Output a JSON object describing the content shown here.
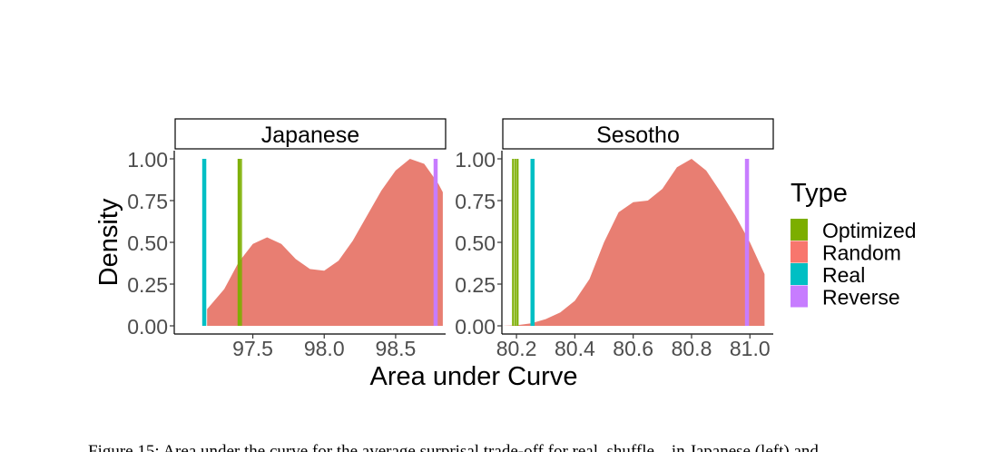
{
  "chart_data": {
    "type": "area",
    "xlabel": "Area under Curve",
    "ylabel": "Density",
    "legend": {
      "title": "Type",
      "placement": "right",
      "entries": [
        {
          "label": "Optimized",
          "color": "#7CAE00"
        },
        {
          "label": "Random",
          "color": "#F8766D"
        },
        {
          "label": "Real",
          "color": "#00BFC4"
        },
        {
          "label": "Reverse",
          "color": "#C77CFF"
        }
      ]
    },
    "panels": [
      {
        "title": "Japanese",
        "xlim": [
          96.95,
          98.85
        ],
        "ylim": [
          0,
          1
        ],
        "xticks": [
          97.5,
          98.0,
          98.5
        ],
        "xtick_labels": [
          "97.5",
          "98.0",
          "98.5"
        ],
        "yticks": [
          0,
          0.25,
          0.5,
          0.75,
          1
        ],
        "ytick_labels": [
          "0.00",
          "0.25",
          "0.50",
          "0.75",
          "1.00"
        ],
        "random_density": {
          "x": [
            97.18,
            97.3,
            97.4,
            97.5,
            97.6,
            97.7,
            97.8,
            97.9,
            98.0,
            98.1,
            98.2,
            98.3,
            98.4,
            98.5,
            98.6,
            98.7,
            98.8,
            98.83
          ],
          "y": [
            0.1,
            0.22,
            0.38,
            0.49,
            0.53,
            0.49,
            0.4,
            0.34,
            0.33,
            0.39,
            0.51,
            0.66,
            0.81,
            0.93,
            1.0,
            0.97,
            0.85,
            0.8
          ]
        },
        "vlines": [
          {
            "type": "Real",
            "x": [
              97.16
            ]
          },
          {
            "type": "Optimized",
            "x": [
              97.4,
              97.41,
              97.42
            ]
          },
          {
            "type": "Reverse",
            "x": [
              98.78
            ]
          }
        ]
      },
      {
        "title": "Sesotho",
        "xlim": [
          80.15,
          81.08
        ],
        "ylim": [
          0,
          1
        ],
        "xticks": [
          80.2,
          80.4,
          80.6,
          80.8,
          81.0
        ],
        "xtick_labels": [
          "80.2",
          "80.4",
          "80.6",
          "80.8",
          "81.0"
        ],
        "yticks": [
          0,
          0.25,
          0.5,
          0.75,
          1
        ],
        "ytick_labels": [
          "0.00",
          "0.25",
          "0.50",
          "0.75",
          "1.00"
        ],
        "random_density": {
          "x": [
            80.15,
            80.2,
            80.25,
            80.3,
            80.35,
            80.4,
            80.45,
            80.5,
            80.55,
            80.6,
            80.65,
            80.7,
            80.75,
            80.8,
            80.85,
            80.9,
            80.95,
            81.0,
            81.05
          ],
          "y": [
            0.0,
            0.003,
            0.015,
            0.04,
            0.08,
            0.15,
            0.28,
            0.5,
            0.68,
            0.74,
            0.75,
            0.82,
            0.95,
            1.0,
            0.93,
            0.8,
            0.66,
            0.5,
            0.31
          ]
        },
        "vlines": [
          {
            "type": "Optimized",
            "x": [
              80.188,
              80.195,
              80.2,
              80.205
            ]
          },
          {
            "type": "Real",
            "x": [
              80.255
            ]
          },
          {
            "type": "Reverse",
            "x": [
              80.99
            ]
          }
        ]
      }
    ]
  },
  "caption": "Figure 15: Area under the curve for the average surprisal trade-off for real, shuffle... in Japanese (left) and"
}
